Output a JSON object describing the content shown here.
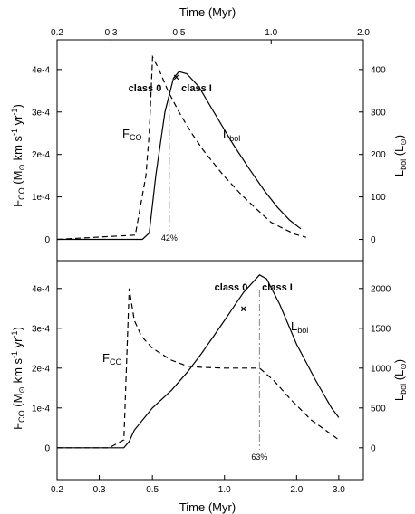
{
  "chart_data": [
    {
      "type": "line",
      "panel": "top",
      "top_axis_label": "Time (Myr)",
      "top_ticks": [
        "0.2",
        "0.3",
        "0.5",
        "1.0",
        "2.0"
      ],
      "left_ticks": [
        "0",
        "1e-4",
        "2e-4",
        "3e-4",
        "4e-4"
      ],
      "right_ticks": [
        "0",
        "100",
        "200",
        "300",
        "400"
      ],
      "xlim": [
        0.2,
        2.0
      ],
      "ylim_left": [
        -5e-05,
        0.00047
      ],
      "ylim_right": [
        -50,
        470
      ],
      "x_scale": "log",
      "series": [
        {
          "name": "F_CO",
          "name_main": "F",
          "name_sub": "CO",
          "style": "dashed",
          "axis": "left",
          "x": [
            0.2,
            0.36,
            0.39,
            0.4,
            0.41,
            0.43,
            0.46,
            0.5,
            0.55,
            0.6,
            0.7,
            0.8,
            0.9,
            1.0,
            1.1,
            1.2,
            1.3
          ],
          "y": [
            0.0,
            1e-05,
            0.00015,
            0.00025,
            0.00043,
            0.0004,
            0.00035,
            0.0003,
            0.00025,
            0.00021,
            0.00015,
            0.000105,
            7e-05,
            4e-05,
            2.5e-05,
            1.2e-05,
            5e-06
          ]
        },
        {
          "name": "L_bol",
          "name_main": "L",
          "name_sub": "bol",
          "style": "solid",
          "axis": "right",
          "x": [
            0.2,
            0.38,
            0.4,
            0.42,
            0.45,
            0.48,
            0.5,
            0.53,
            0.58,
            0.65,
            0.75,
            0.85,
            0.95,
            1.05,
            1.15,
            1.25
          ],
          "y": [
            0,
            0,
            15,
            150,
            300,
            380,
            395,
            390,
            360,
            300,
            225,
            165,
            115,
            75,
            45,
            25
          ]
        }
      ],
      "annotations": {
        "class0": "class 0",
        "class1": "class I",
        "percent": "42%"
      },
      "markers": [
        {
          "symbol": "×",
          "x": 0.49,
          "y_right": 385
        }
      ]
    },
    {
      "type": "line",
      "panel": "bottom",
      "bottom_axis_label": "Time (Myr)",
      "bottom_ticks": [
        "0.2",
        "0.3",
        "0.5",
        "1.0",
        "2.0",
        "3.0"
      ],
      "left_ticks": [
        "0",
        "1e-4",
        "2e-4",
        "3e-4",
        "4e-4"
      ],
      "right_ticks": [
        "0",
        "500",
        "1000",
        "1500",
        "2000"
      ],
      "xlim": [
        0.2,
        3.8
      ],
      "ylim_left": [
        -8e-05,
        0.00047
      ],
      "ylim_right": [
        -400,
        2350
      ],
      "x_scale": "log",
      "series": [
        {
          "name": "F_CO",
          "name_main": "F",
          "name_sub": "CO",
          "style": "dashed",
          "axis": "left",
          "x": [
            0.2,
            0.33,
            0.38,
            0.4,
            0.42,
            0.45,
            0.5,
            0.6,
            0.7,
            0.8,
            1.0,
            1.2,
            1.4,
            1.6,
            1.9,
            2.3,
            2.7,
            3.0
          ],
          "y": [
            0.0,
            0.0,
            2e-05,
            0.0004,
            0.00032,
            0.00028,
            0.00025,
            0.00022,
            0.000205,
            0.000202,
            0.0002,
            0.0002,
            0.0002,
            0.00017,
            0.00012,
            7e-05,
            4e-05,
            2e-05
          ]
        },
        {
          "name": "L_bol",
          "name_main": "L",
          "name_sub": "bol",
          "style": "solid",
          "axis": "right",
          "x": [
            0.2,
            0.38,
            0.4,
            0.42,
            0.5,
            0.6,
            0.7,
            0.8,
            0.9,
            1.0,
            1.2,
            1.4,
            1.5,
            1.7,
            2.0,
            2.4,
            2.8,
            3.0
          ],
          "y": [
            0,
            0,
            80,
            220,
            500,
            720,
            950,
            1180,
            1400,
            1600,
            1950,
            2170,
            2120,
            1800,
            1300,
            850,
            500,
            380
          ]
        }
      ],
      "annotations": {
        "class0": "class 0",
        "class1": "class I",
        "percent": "63%"
      },
      "markers": [
        {
          "symbol": "×",
          "x": 1.2,
          "y_right": 1760
        }
      ]
    }
  ],
  "ylabel_left": {
    "main": "F",
    "sub": "CO",
    "rest": " (M",
    "sun": "⊙",
    "rest2": " km s",
    "exp1": "-1",
    "rest3": " yr",
    "exp2": "-1",
    "close": ")"
  },
  "ylabel_right": {
    "main": "L",
    "sub": "bol",
    "rest": " (L",
    "sun": "⊙",
    "close": ")"
  },
  "colors": {
    "line": "#000000",
    "guide": "#888888"
  }
}
